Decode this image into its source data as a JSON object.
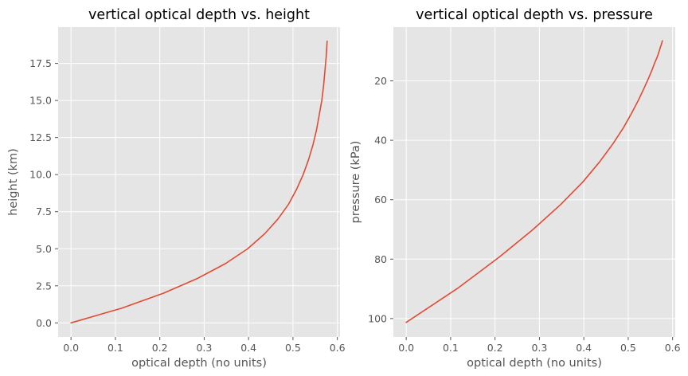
{
  "chart_data": [
    {
      "type": "line",
      "title": "vertical optical depth vs. height",
      "xlabel": "optical depth (no units)",
      "ylabel": "height (km)",
      "xlim": [
        -0.029,
        0.606
      ],
      "ylim": [
        -0.95,
        19.95
      ],
      "y_inverted": false,
      "grid": true,
      "xticks": [
        0.0,
        0.1,
        0.2,
        0.3,
        0.4,
        0.5,
        0.6
      ],
      "xtick_labels": [
        "0.0",
        "0.1",
        "0.2",
        "0.3",
        "0.4",
        "0.5",
        "0.6"
      ],
      "yticks": [
        0.0,
        2.5,
        5.0,
        7.5,
        10.0,
        12.5,
        15.0,
        17.5
      ],
      "ytick_labels": [
        "0.0",
        "2.5",
        "5.0",
        "7.5",
        "10.0",
        "12.5",
        "15.0",
        "17.5"
      ],
      "series": [
        {
          "color": "#e24a33",
          "x": [
            0.0,
            0.115,
            0.208,
            0.285,
            0.348,
            0.398,
            0.436,
            0.466,
            0.49,
            0.508,
            0.523,
            0.535,
            0.545,
            0.553,
            0.559,
            0.565,
            0.569,
            0.572,
            0.575,
            0.577
          ],
          "y": [
            0,
            1,
            2,
            3,
            4,
            5,
            6,
            7,
            8,
            9,
            10,
            11,
            12,
            13,
            14,
            15,
            16,
            17,
            18,
            19
          ]
        }
      ]
    },
    {
      "type": "line",
      "title": "vertical optical depth vs. pressure",
      "xlabel": "optical depth (no units)",
      "ylabel": "pressure (kPa)",
      "xlim": [
        -0.029,
        0.606
      ],
      "ylim": [
        106.2,
        1.9
      ],
      "y_inverted": true,
      "grid": true,
      "xticks": [
        0.0,
        0.1,
        0.2,
        0.3,
        0.4,
        0.5,
        0.6
      ],
      "xtick_labels": [
        "0.0",
        "0.1",
        "0.2",
        "0.3",
        "0.4",
        "0.5",
        "0.6"
      ],
      "yticks": [
        20,
        40,
        60,
        80,
        100
      ],
      "ytick_labels": [
        "20",
        "40",
        "60",
        "80",
        "100"
      ],
      "series": [
        {
          "color": "#e24a33",
          "x": [
            0.0,
            0.115,
            0.208,
            0.285,
            0.348,
            0.398,
            0.436,
            0.466,
            0.49,
            0.508,
            0.523,
            0.535,
            0.545,
            0.553,
            0.559,
            0.565,
            0.569,
            0.572,
            0.575,
            0.577
          ],
          "y": [
            101.3,
            89.9,
            79.5,
            70.1,
            61.6,
            54.0,
            47.2,
            41.1,
            35.6,
            30.8,
            26.5,
            22.7,
            19.4,
            16.6,
            14.2,
            12.1,
            10.4,
            8.9,
            7.6,
            6.5
          ]
        }
      ]
    }
  ]
}
